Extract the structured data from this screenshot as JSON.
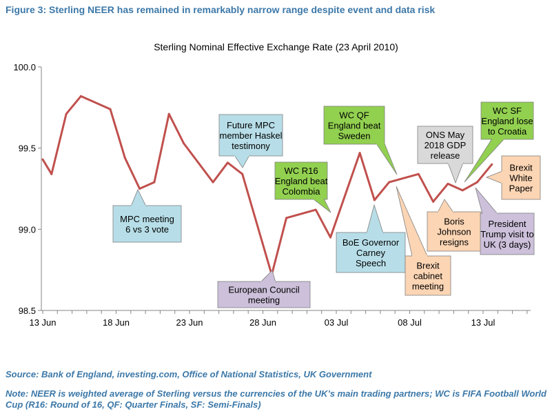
{
  "figure": {
    "title": "Figure 3: Sterling NEER has remained in remarkably narrow range despite event and data risk",
    "source": "Source: Bank of England, investing.com, Office of National Statistics, UK Government",
    "note": "Note: NEER is weighted average of Sterling versus the currencies of the UK’s main trading partners; WC is FIFA Football World Cup (R16: Round of 16, QF: Quarter Finals, SF: Semi-Finals)"
  },
  "colors": {
    "title": "#3C78A8",
    "line": "#C0504D",
    "blue_callout": "#B7DEE8",
    "green_callout": "#92D050",
    "purple_callout": "#CCC0DA",
    "orange_callout": "#FCD5B4",
    "gray_callout": "#D9D9D9"
  },
  "chart_data": {
    "type": "line",
    "title": "Sterling Nominal  Effective Exchange Rate (23 April 2010)",
    "xlabel": "",
    "ylabel": "",
    "ylim": [
      98.5,
      100.0
    ],
    "yticks": [
      "98.5",
      "99.0",
      "99.5",
      "100.0"
    ],
    "xticks": [
      {
        "day": 0,
        "label": "13 Jun"
      },
      {
        "day": 5,
        "label": "18 Jun"
      },
      {
        "day": 10,
        "label": "23 Jun"
      },
      {
        "day": 15,
        "label": "28 Jun"
      },
      {
        "day": 20,
        "label": "03 Jul"
      },
      {
        "day": 25,
        "label": "08 Jul"
      },
      {
        "day": 30,
        "label": "13 Jul"
      }
    ],
    "x": [
      0,
      0.6,
      1.6,
      2.6,
      4.6,
      5.6,
      6.6,
      7.6,
      8.6,
      9.6,
      11.6,
      12.6,
      13.6,
      15.6,
      16.6,
      18.6,
      19.6,
      21.6,
      22.6,
      23.6,
      25.6,
      26.6,
      27.6,
      28.6,
      29.6,
      30.6
    ],
    "series": [
      {
        "values": [
          99.43,
          99.34,
          99.71,
          99.82,
          99.74,
          99.44,
          99.25,
          99.29,
          99.71,
          99.53,
          99.29,
          99.41,
          99.34,
          98.72,
          99.07,
          99.12,
          98.95,
          99.47,
          99.18,
          99.29,
          99.34,
          99.17,
          99.28,
          99.24,
          99.29,
          99.4
        ]
      }
    ],
    "annotations": [
      {
        "lines": [
          "MPC meeting",
          "6 vs 3 vote"
        ],
        "style": "blue"
      },
      {
        "lines": [
          "Future MPC",
          "member Haskel",
          "testimony"
        ],
        "style": "blue"
      },
      {
        "lines": [
          "European Council",
          "meeting"
        ],
        "style": "purple"
      },
      {
        "lines": [
          "WC R16",
          "England beat",
          "Colombia"
        ],
        "style": "green"
      },
      {
        "lines": [
          "WC QF",
          "England beat",
          "Sweden"
        ],
        "style": "green"
      },
      {
        "lines": [
          "BoE Governor",
          "Carney",
          "Speech"
        ],
        "style": "blue"
      },
      {
        "lines": [
          "Brexit",
          "cabinet",
          "meeting"
        ],
        "style": "orange"
      },
      {
        "lines": [
          "ONS May",
          "2018 GDP",
          "release"
        ],
        "style": "gray"
      },
      {
        "lines": [
          "Boris",
          "Johnson",
          "resigns"
        ],
        "style": "orange"
      },
      {
        "lines": [
          "WC SF",
          "England lose",
          "to Croatia"
        ],
        "style": "green"
      },
      {
        "lines": [
          "President",
          "Trump  visit to",
          "UK (3 days)"
        ],
        "style": "purple"
      },
      {
        "lines": [
          "Brexit",
          "White",
          "Paper"
        ],
        "style": "orange"
      }
    ]
  }
}
